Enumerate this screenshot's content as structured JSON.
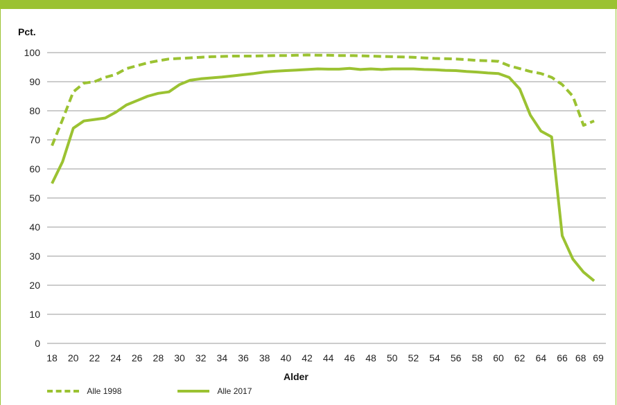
{
  "chart_data": {
    "type": "line",
    "ylabel": "Pct.",
    "xlabel": "Alder",
    "ylim": [
      0,
      100
    ],
    "yticks": [
      0,
      10,
      20,
      30,
      40,
      50,
      60,
      70,
      80,
      90,
      100
    ],
    "xticks": [
      18,
      20,
      22,
      24,
      26,
      28,
      30,
      32,
      34,
      36,
      38,
      40,
      42,
      44,
      46,
      48,
      50,
      52,
      54,
      56,
      58,
      60,
      62,
      64,
      66,
      68,
      69
    ],
    "xlim": [
      18,
      69
    ],
    "grid": "horizontal",
    "legend_position": "bottom-left",
    "x": [
      18,
      19,
      20,
      21,
      22,
      23,
      24,
      25,
      26,
      27,
      28,
      29,
      30,
      31,
      32,
      33,
      34,
      35,
      36,
      37,
      38,
      39,
      40,
      41,
      42,
      43,
      44,
      45,
      46,
      47,
      48,
      49,
      50,
      51,
      52,
      53,
      54,
      55,
      56,
      57,
      58,
      59,
      60,
      61,
      62,
      63,
      64,
      65,
      66,
      67,
      68,
      69
    ],
    "series": [
      {
        "name": "Alle 1998",
        "style": "dashed",
        "values": [
          68,
          77,
          86.5,
          89.5,
          90,
          91.5,
          92.5,
          94.5,
          95.5,
          96.5,
          97.2,
          97.8,
          98,
          98.2,
          98.4,
          98.6,
          98.7,
          98.8,
          98.8,
          98.8,
          98.9,
          99,
          99,
          99.1,
          99.2,
          99.1,
          99.1,
          99,
          99,
          98.9,
          98.8,
          98.7,
          98.6,
          98.5,
          98.4,
          98.2,
          98,
          97.9,
          97.8,
          97.6,
          97.3,
          97.2,
          97,
          95.5,
          94.5,
          93.5,
          92.8,
          91.5,
          89,
          85,
          75,
          76.5
        ]
      },
      {
        "name": "Alle 2017",
        "style": "solid",
        "values": [
          55,
          62.5,
          74,
          76.5,
          77,
          77.5,
          79.5,
          82,
          83.5,
          85,
          86,
          86.5,
          89,
          90.5,
          91,
          91.3,
          91.6,
          92,
          92.4,
          92.8,
          93.3,
          93.6,
          93.8,
          94,
          94.2,
          94.4,
          94.3,
          94.3,
          94.6,
          94.2,
          94.4,
          94.2,
          94.4,
          94.4,
          94.4,
          94.2,
          94.1,
          93.9,
          93.8,
          93.5,
          93.3,
          93,
          92.8,
          91.5,
          87.5,
          78.5,
          73,
          71,
          37,
          29,
          24.5,
          21.5
        ]
      }
    ]
  },
  "colors": {
    "line": "#9bc232",
    "grid": "#9a9a9a",
    "frame": "#9bc232"
  }
}
